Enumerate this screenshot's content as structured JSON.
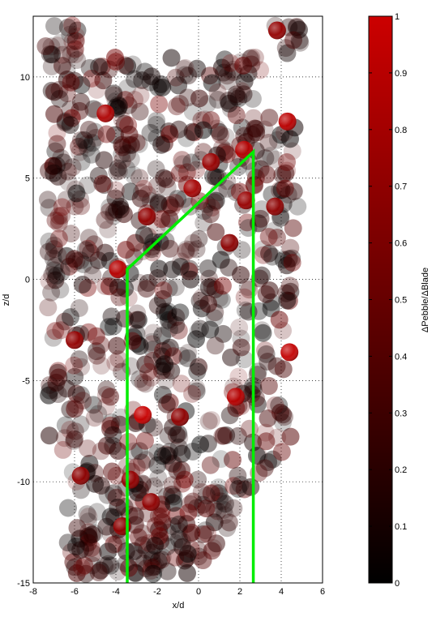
{
  "chart_data": {
    "type": "scatter",
    "xlabel": "x/d",
    "ylabel": "z/d",
    "xlim": [
      -8,
      6
    ],
    "ylim": [
      -15,
      13
    ],
    "xticks": [
      "-8",
      "-6",
      "-4",
      "-2",
      "0",
      "2",
      "4",
      "6"
    ],
    "yticks": [
      "-15",
      "-10",
      "-5",
      "0",
      "5",
      "10"
    ],
    "grid": "dotted",
    "colorbar": {
      "label": "ΔPebble/ΔBlade",
      "range": [
        0,
        1
      ],
      "ticks": [
        "0",
        "0.1",
        "0.2",
        "0.3",
        "0.4",
        "0.5",
        "0.6",
        "0.7",
        "0.8",
        "0.9",
        "1"
      ],
      "colormap": [
        "#000000",
        "#cc0000"
      ]
    },
    "blade_outline": {
      "color": "#00ee00",
      "x": [
        -3.45,
        -3.45,
        2.65,
        2.65
      ],
      "y": [
        -15,
        0.5,
        6.3,
        -15
      ]
    },
    "highlighted_pebbles": [
      {
        "x": -4.5,
        "y": 8.2,
        "v": 0.85
      },
      {
        "x": 2.2,
        "y": 6.4,
        "v": 0.88
      },
      {
        "x": 4.3,
        "y": 7.8,
        "v": 0.92
      },
      {
        "x": -3.9,
        "y": 0.5,
        "v": 0.9
      },
      {
        "x": -0.3,
        "y": 4.5,
        "v": 0.8
      },
      {
        "x": 0.6,
        "y": 5.8,
        "v": 0.75
      },
      {
        "x": -6.0,
        "y": -3.0,
        "v": 0.72
      },
      {
        "x": 4.4,
        "y": -3.6,
        "v": 0.95
      },
      {
        "x": -2.7,
        "y": -6.7,
        "v": 0.98
      },
      {
        "x": 1.8,
        "y": -5.8,
        "v": 0.9
      },
      {
        "x": -0.9,
        "y": -6.8,
        "v": 0.7
      },
      {
        "x": -2.3,
        "y": -11.0,
        "v": 0.7
      },
      {
        "x": -5.7,
        "y": -9.7,
        "v": 0.7
      },
      {
        "x": -3.3,
        "y": -9.9,
        "v": 0.72
      },
      {
        "x": -3.7,
        "y": -12.2,
        "v": 0.7
      },
      {
        "x": 2.3,
        "y": 3.9,
        "v": 0.75
      },
      {
        "x": 3.7,
        "y": 3.6,
        "v": 0.7
      },
      {
        "x": 1.5,
        "y": 1.8,
        "v": 0.68
      },
      {
        "x": -2.5,
        "y": 3.1,
        "v": 0.72
      },
      {
        "x": 3.8,
        "y": 12.3,
        "v": 0.72
      }
    ]
  }
}
